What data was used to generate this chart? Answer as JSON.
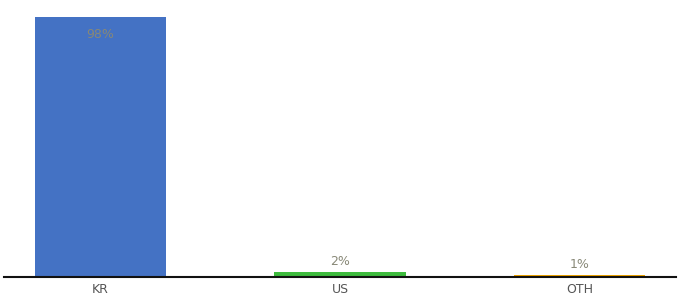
{
  "categories": [
    "KR",
    "US",
    "OTH"
  ],
  "values": [
    98,
    2,
    1
  ],
  "bar_colors": [
    "#4472c4",
    "#3dbb3d",
    "#f0a500"
  ],
  "labels": [
    "98%",
    "2%",
    "1%"
  ],
  "ylim": [
    0,
    103
  ],
  "background_color": "#ffffff",
  "label_color_inside": "#888877",
  "label_color_outside": "#888877",
  "label_fontsize": 9,
  "tick_fontsize": 9,
  "bar_width": 0.55
}
